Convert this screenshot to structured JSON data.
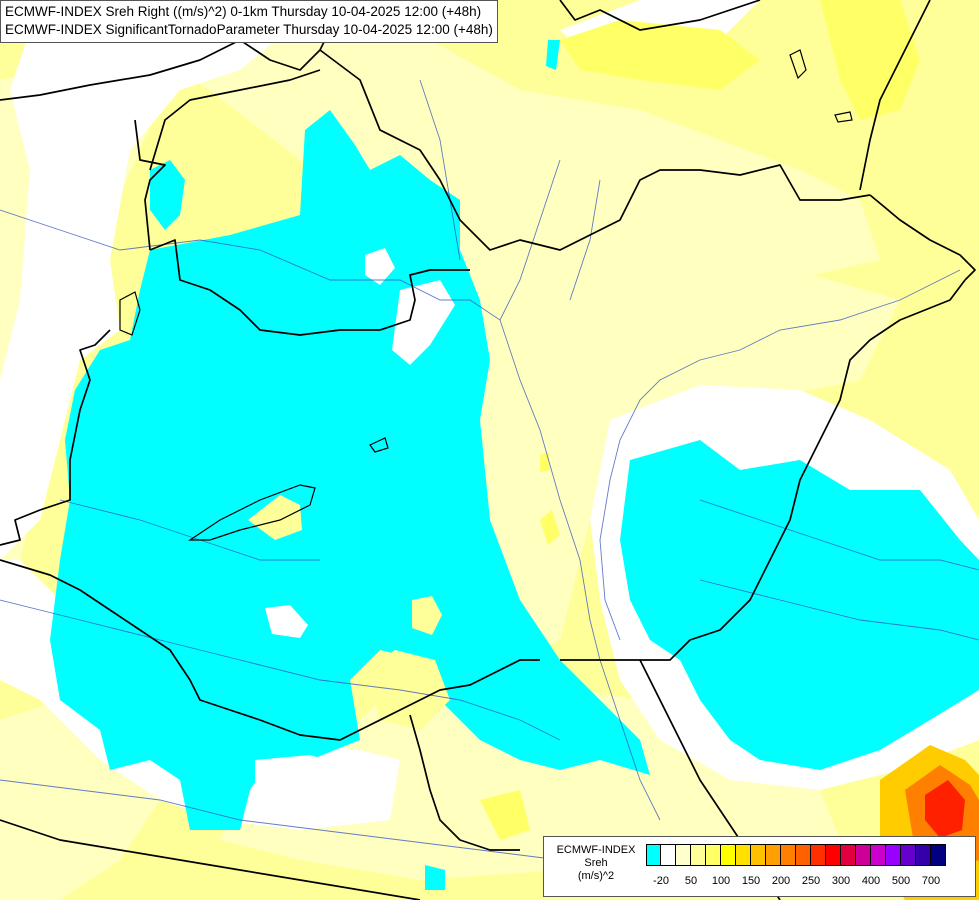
{
  "title": {
    "line1": "ECMWF-INDEX Sreh Right ((m/s)^2) 0-1km Thursday 10-04-2025 12:00 (+48h)",
    "line2": "ECMWF-INDEX SignificantTornadoParameter Thursday 10-04-2025 12:00 (+48h)"
  },
  "legend": {
    "source": "ECMWF-INDEX",
    "variable": "Sreh",
    "unit": "(m/s)^2",
    "colors": [
      "#00ffff",
      "#ffffff",
      "#ffffcc",
      "#ffff99",
      "#ffff66",
      "#ffff00",
      "#ffe000",
      "#ffc000",
      "#ffa000",
      "#ff8000",
      "#ff6000",
      "#ff3000",
      "#ff0000",
      "#e00040",
      "#cc0099",
      "#cc00cc",
      "#9900ff",
      "#6600cc",
      "#3300aa",
      "#000080"
    ],
    "labels": [
      {
        "text": "-20",
        "index": 0
      },
      {
        "text": "50",
        "index": 2
      },
      {
        "text": "100",
        "index": 4
      },
      {
        "text": "150",
        "index": 6
      },
      {
        "text": "200",
        "index": 8
      },
      {
        "text": "250",
        "index": 10
      },
      {
        "text": "300",
        "index": 12
      },
      {
        "text": "400",
        "index": 14
      },
      {
        "text": "500",
        "index": 16
      },
      {
        "text": "700",
        "index": 18
      }
    ]
  },
  "fields": {
    "low_color": "#00ffff",
    "neutral_color": "#ffffff",
    "light_color": "#ffffc0",
    "medium_color": "#ffff99",
    "warm_color": "#ffff66",
    "hot_colors": [
      "#ffcc00",
      "#ff8000",
      "#ff2000"
    ]
  }
}
